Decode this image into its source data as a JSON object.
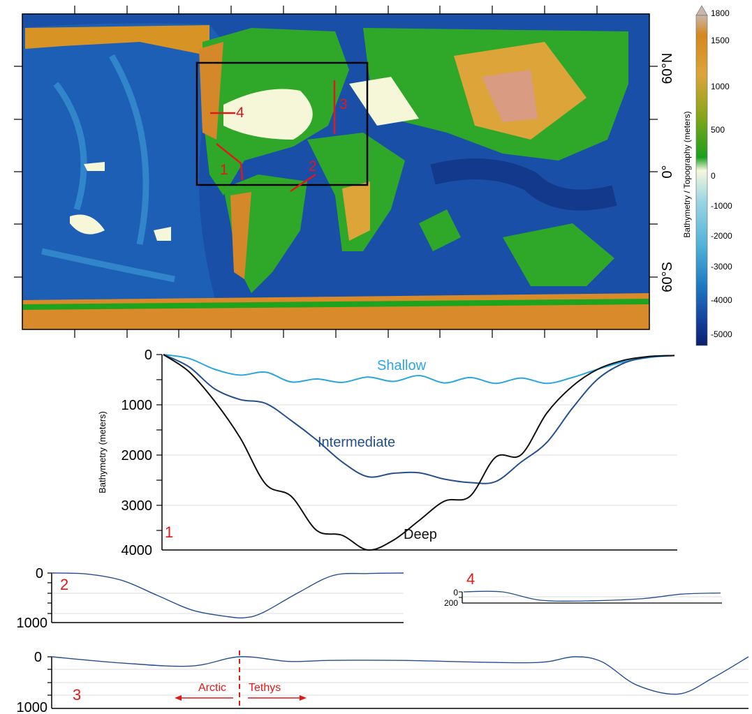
{
  "map": {
    "lat_labels": [
      "60°N",
      "0°",
      "60°S"
    ],
    "route_labels": [
      "1",
      "2",
      "3",
      "4"
    ]
  },
  "colorbar": {
    "label": "Bathymetry / Topography (meters)",
    "ticks": [
      "1800",
      "1500",
      "1000",
      "500",
      "0",
      "-1000",
      "-2000",
      "-3000",
      "-4000",
      "-5000"
    ],
    "colors": [
      "#c9b6a8",
      "#d4881e",
      "#dda43a",
      "#8aa61a",
      "#19a01e",
      "#f6f8dc",
      "#9dd6e3",
      "#4fb1d8",
      "#1f78c2",
      "#1542a0",
      "#0a1f6e"
    ]
  },
  "chart_data": [
    {
      "type": "line",
      "panel_label": "1",
      "ylabel": "Bathymetry (meters)",
      "ylim": [
        4000,
        0
      ],
      "yticks": [
        "0",
        "1000",
        "2000",
        "3000",
        "4000"
      ],
      "x": [
        0,
        0.05,
        0.1,
        0.15,
        0.2,
        0.25,
        0.3,
        0.35,
        0.4,
        0.45,
        0.5,
        0.55,
        0.6,
        0.65,
        0.7,
        0.75,
        0.8,
        0.85,
        0.9,
        0.95,
        1
      ],
      "series": [
        {
          "name": "Shallow",
          "color": "#2aa6df",
          "values": [
            0,
            80,
            300,
            420,
            360,
            560,
            500,
            570,
            460,
            550,
            430,
            580,
            470,
            590,
            480,
            590,
            470,
            300,
            150,
            60,
            20
          ]
        },
        {
          "name": "Intermediate",
          "color": "#234f8f",
          "values": [
            0,
            250,
            700,
            920,
            1000,
            1350,
            1750,
            2200,
            2500,
            2430,
            2420,
            2550,
            2620,
            2600,
            2200,
            1800,
            1100,
            500,
            180,
            50,
            20
          ]
        },
        {
          "name": "Deep",
          "color": "#111111",
          "values": [
            0,
            350,
            950,
            1700,
            2650,
            2900,
            3600,
            3700,
            4000,
            3800,
            3400,
            3000,
            2900,
            2100,
            2050,
            1200,
            650,
            300,
            120,
            40,
            20
          ]
        }
      ]
    },
    {
      "type": "line",
      "panel_label": "2",
      "ylim": [
        1000,
        0
      ],
      "yticks": [
        "0",
        "1000"
      ],
      "x": [
        0,
        0.1,
        0.2,
        0.3,
        0.4,
        0.5,
        0.55,
        0.6,
        0.7,
        0.8,
        0.9,
        1
      ],
      "series": [
        {
          "values": [
            0,
            20,
            150,
            450,
            750,
            880,
            900,
            800,
            400,
            50,
            10,
            0
          ]
        }
      ]
    },
    {
      "type": "line",
      "panel_label": "4",
      "ylim": [
        200,
        0
      ],
      "yticks": [
        "0",
        "200"
      ],
      "x": [
        0,
        0.15,
        0.3,
        0.5,
        0.7,
        0.85,
        1
      ],
      "series": [
        {
          "values": [
            0,
            0,
            150,
            160,
            120,
            40,
            20
          ]
        }
      ]
    },
    {
      "type": "line",
      "panel_label": "3",
      "ylim": [
        1000,
        0
      ],
      "yticks": [
        "0",
        "1000"
      ],
      "x": [
        0,
        0.1,
        0.2,
        0.27,
        0.34,
        0.4,
        0.5,
        0.6,
        0.7,
        0.75,
        0.79,
        0.84,
        0.9,
        0.95,
        1
      ],
      "series": [
        {
          "values": [
            0,
            120,
            180,
            0,
            90,
            70,
            70,
            100,
            110,
            0,
            100,
            550,
            720,
            400,
            0
          ]
        }
      ],
      "annotations": [
        "Arctic",
        "Tethys"
      ]
    }
  ]
}
